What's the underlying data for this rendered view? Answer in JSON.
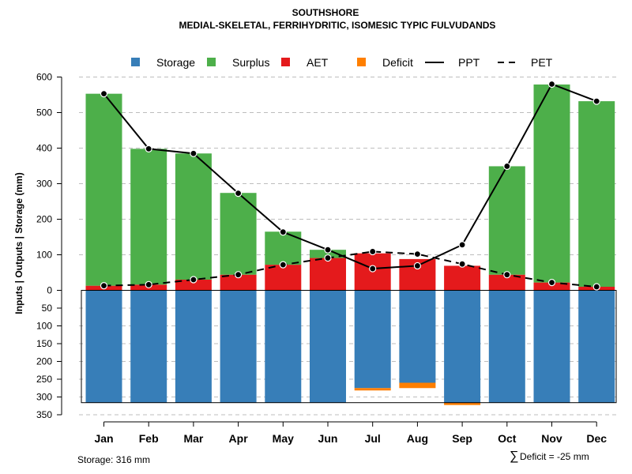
{
  "chart_data": {
    "type": "bar",
    "title": "SOUTHSHORE",
    "subtitle": "MEDIAL-SKELETAL, FERRIHYDRITIC, ISOMESIC TYPIC FULVUDANDS",
    "ylabel": "Inputs | Outputs | Storage    (mm)",
    "categories": [
      "Jan",
      "Feb",
      "Mar",
      "Apr",
      "May",
      "Jun",
      "Jul",
      "Aug",
      "Sep",
      "Oct",
      "Nov",
      "Dec"
    ],
    "ylim_upper": [
      0,
      600
    ],
    "ylim_lower": [
      0,
      350
    ],
    "upper_ticks": [
      "600",
      "500",
      "400",
      "300",
      "200",
      "100",
      "0"
    ],
    "upper_tick_values": [
      600,
      500,
      400,
      300,
      200,
      100,
      0
    ],
    "lower_ticks": [
      "50",
      "100",
      "150",
      "200",
      "250",
      "300",
      "350"
    ],
    "lower_tick_values": [
      50,
      100,
      150,
      200,
      250,
      300,
      350
    ],
    "series": [
      {
        "name": "Storage",
        "values": [
          316,
          316,
          316,
          316,
          316,
          316,
          275,
          260,
          316,
          316,
          316,
          316
        ]
      },
      {
        "name": "Surplus",
        "values": [
          540,
          382,
          355,
          230,
          93,
          23,
          0,
          0,
          0,
          305,
          557,
          522
        ]
      },
      {
        "name": "AET",
        "values": [
          13,
          16,
          30,
          44,
          72,
          91,
          104,
          88,
          69,
          44,
          22,
          10
        ]
      },
      {
        "name": "Deficit",
        "values": [
          0,
          0,
          0,
          0,
          0,
          0,
          -5,
          -15,
          -5,
          0,
          0,
          0
        ]
      },
      {
        "name": "PPT",
        "values": [
          553,
          398,
          385,
          273,
          164,
          114,
          61,
          69,
          128,
          349,
          580,
          532
        ]
      },
      {
        "name": "PET",
        "values": [
          13,
          16,
          30,
          44,
          72,
          91,
          109,
          102,
          74,
          44,
          22,
          10
        ]
      }
    ],
    "legend": [
      {
        "label": "Storage",
        "kind": "box",
        "color": "#377eb8"
      },
      {
        "label": "Surplus",
        "kind": "box",
        "color": "#4daf4a"
      },
      {
        "label": "AET",
        "kind": "box",
        "color": "#e41a1c"
      },
      {
        "label": "Deficit",
        "kind": "box",
        "color": "#ff7f00"
      },
      {
        "label": "PPT",
        "kind": "solid",
        "color": "#000000"
      },
      {
        "label": "PET",
        "kind": "dashed",
        "color": "#000000"
      }
    ],
    "colors": {
      "storage": "#377eb8",
      "surplus": "#4daf4a",
      "aet": "#e41a1c",
      "deficit": "#ff7f00",
      "line": "#000000"
    }
  },
  "footer": {
    "storage_label": "Storage: 316 mm",
    "deficit_symbol": "∑",
    "deficit_label": "Deficit = -25 mm"
  }
}
